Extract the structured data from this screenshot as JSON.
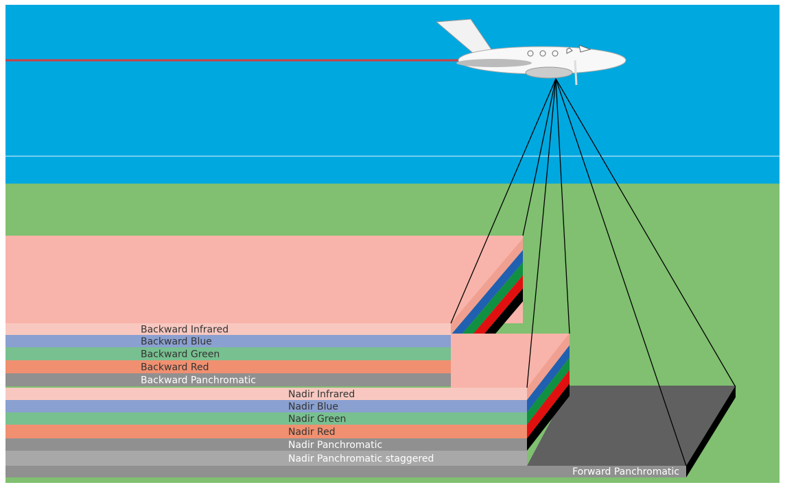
{
  "backward": [
    "Backward Infrared",
    "Backward Blue",
    "Backward Green",
    "Backward Red",
    "Backward Panchromatic"
  ],
  "nadir": [
    "Nadir Infrared",
    "Nadir Blue",
    "Nadir Green",
    "Nadir Red",
    "Nadir Panchromatic",
    "Nadir Panchromatic staggered"
  ],
  "forward": [
    "Forward Panchromatic"
  ]
}
